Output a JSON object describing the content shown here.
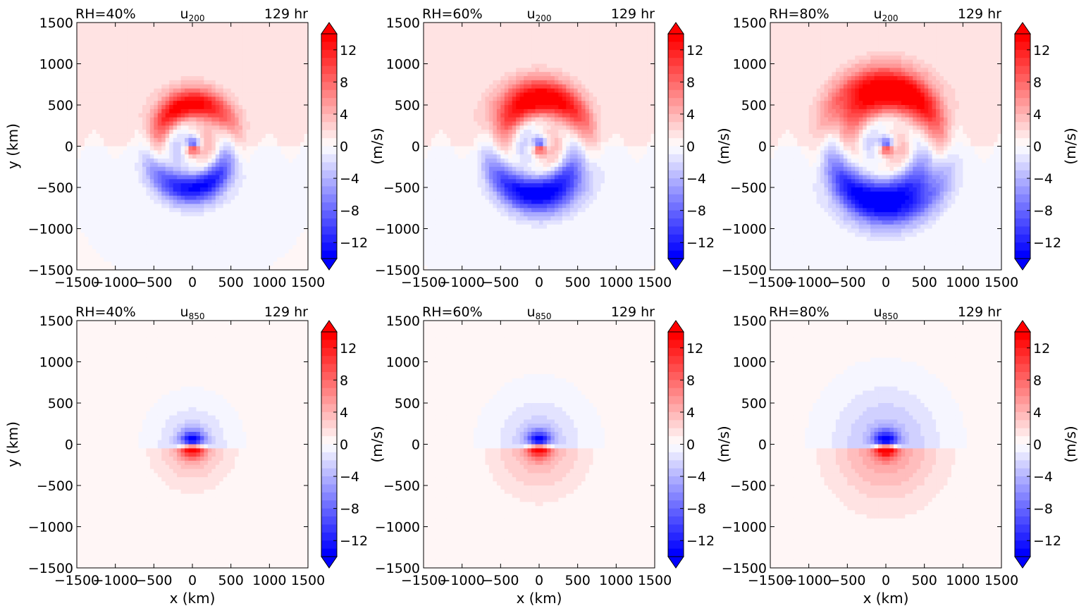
{
  "chart_data": [
    {
      "type": "heatmap",
      "rh": "RH=40%",
      "var": "u",
      "level": "200",
      "time": "129 hr",
      "xlabel": "",
      "ylabel": "y (km)",
      "cbar_label": "(m/s)",
      "xlim": [
        -1500,
        1500
      ],
      "ylim": [
        -1500,
        1500
      ],
      "xticks": [
        "−1500",
        "−1000",
        "−500",
        "0",
        "500",
        "1000",
        "1500"
      ],
      "yticks": [
        "−1500",
        "−1000",
        "−500",
        "0",
        "500",
        "1000",
        "1500"
      ],
      "cbar_ticks": [
        "12",
        "8",
        "4",
        "0",
        "−4",
        "−8",
        "−12"
      ],
      "cbar_range": [
        -14,
        14
      ],
      "features": {
        "band_radius_km": 500,
        "band_max_ms": 14,
        "core_max_ms": 16,
        "background_ms": 0.5
      }
    },
    {
      "type": "heatmap",
      "rh": "RH=60%",
      "var": "u",
      "level": "200",
      "time": "129 hr",
      "xlabel": "",
      "ylabel": "",
      "cbar_label": "(m/s)",
      "xlim": [
        -1500,
        1500
      ],
      "ylim": [
        -1500,
        1500
      ],
      "xticks": [
        "−1500",
        "−1000",
        "−500",
        "0",
        "500",
        "1000",
        "1500"
      ],
      "yticks": [
        "−1500",
        "−1000",
        "−500",
        "0",
        "500",
        "1000",
        "1500"
      ],
      "cbar_ticks": [
        "12",
        "8",
        "4",
        "0",
        "−4",
        "−8",
        "−12"
      ],
      "cbar_range": [
        -14,
        14
      ],
      "features": {
        "band_radius_km": 580,
        "band_max_ms": 15,
        "core_max_ms": 16,
        "background_ms": 0.5
      }
    },
    {
      "type": "heatmap",
      "rh": "RH=80%",
      "var": "u",
      "level": "200",
      "time": "129 hr",
      "xlabel": "",
      "ylabel": "",
      "cbar_label": "(m/s)",
      "xlim": [
        -1500,
        1500
      ],
      "ylim": [
        -1500,
        1500
      ],
      "xticks": [
        "−1500",
        "−1000",
        "−500",
        "0",
        "500",
        "1000",
        "1500"
      ],
      "yticks": [
        "−1500",
        "−1000",
        "−500",
        "0",
        "500",
        "1000",
        "1500"
      ],
      "cbar_ticks": [
        "12",
        "8",
        "4",
        "0",
        "−4",
        "−8",
        "−12"
      ],
      "cbar_range": [
        -14,
        14
      ],
      "features": {
        "band_radius_km": 680,
        "band_max_ms": 16,
        "core_max_ms": 16,
        "background_ms": 0.5
      }
    },
    {
      "type": "heatmap",
      "rh": "RH=40%",
      "var": "u",
      "level": "850",
      "time": "129 hr",
      "xlabel": "x (km)",
      "ylabel": "y (km)",
      "cbar_label": "(m/s)",
      "xlim": [
        -1500,
        1500
      ],
      "ylim": [
        -1500,
        1500
      ],
      "xticks": [
        "−1500",
        "−1000",
        "−500",
        "0",
        "500",
        "1000",
        "1500"
      ],
      "yticks": [
        "−1500",
        "−1000",
        "−500",
        "0",
        "500",
        "1000",
        "1500"
      ],
      "cbar_ticks": [
        "12",
        "8",
        "4",
        "0",
        "−4",
        "−8",
        "−12"
      ],
      "cbar_range": [
        -14,
        14
      ],
      "features": {
        "core_max_ms": 14,
        "outer_radius_km": 450,
        "outer_max_ms": 4,
        "background_ms": 0.3
      }
    },
    {
      "type": "heatmap",
      "rh": "RH=60%",
      "var": "u",
      "level": "850",
      "time": "129 hr",
      "xlabel": "x (km)",
      "ylabel": "",
      "cbar_label": "(m/s)",
      "xlim": [
        -1500,
        1500
      ],
      "ylim": [
        -1500,
        1500
      ],
      "xticks": [
        "−1500",
        "−1000",
        "−500",
        "0",
        "500",
        "1000",
        "1500"
      ],
      "yticks": [
        "−1500",
        "−1000",
        "−500",
        "0",
        "500",
        "1000",
        "1500"
      ],
      "cbar_ticks": [
        "12",
        "8",
        "4",
        "0",
        "−4",
        "−8",
        "−12"
      ],
      "cbar_range": [
        -14,
        14
      ],
      "features": {
        "core_max_ms": 14,
        "outer_radius_km": 550,
        "outer_max_ms": 4,
        "background_ms": 0.3
      }
    },
    {
      "type": "heatmap",
      "rh": "RH=80%",
      "var": "u",
      "level": "850",
      "time": "129 hr",
      "xlabel": "x (km)",
      "ylabel": "",
      "cbar_label": "(m/s)",
      "xlim": [
        -1500,
        1500
      ],
      "ylim": [
        -1500,
        1500
      ],
      "xticks": [
        "−1500",
        "−1000",
        "−500",
        "0",
        "500",
        "1000",
        "1500"
      ],
      "yticks": [
        "−1500",
        "−1000",
        "−500",
        "0",
        "500",
        "1000",
        "1500"
      ],
      "cbar_ticks": [
        "12",
        "8",
        "4",
        "0",
        "−4",
        "−8",
        "−12"
      ],
      "cbar_range": [
        -14,
        14
      ],
      "features": {
        "core_max_ms": 15,
        "outer_radius_km": 650,
        "outer_max_ms": 5,
        "background_ms": 0.3
      }
    }
  ],
  "colors": {
    "positive": "#ff0000",
    "negative": "#0000ff",
    "zero": "#ffffff"
  }
}
